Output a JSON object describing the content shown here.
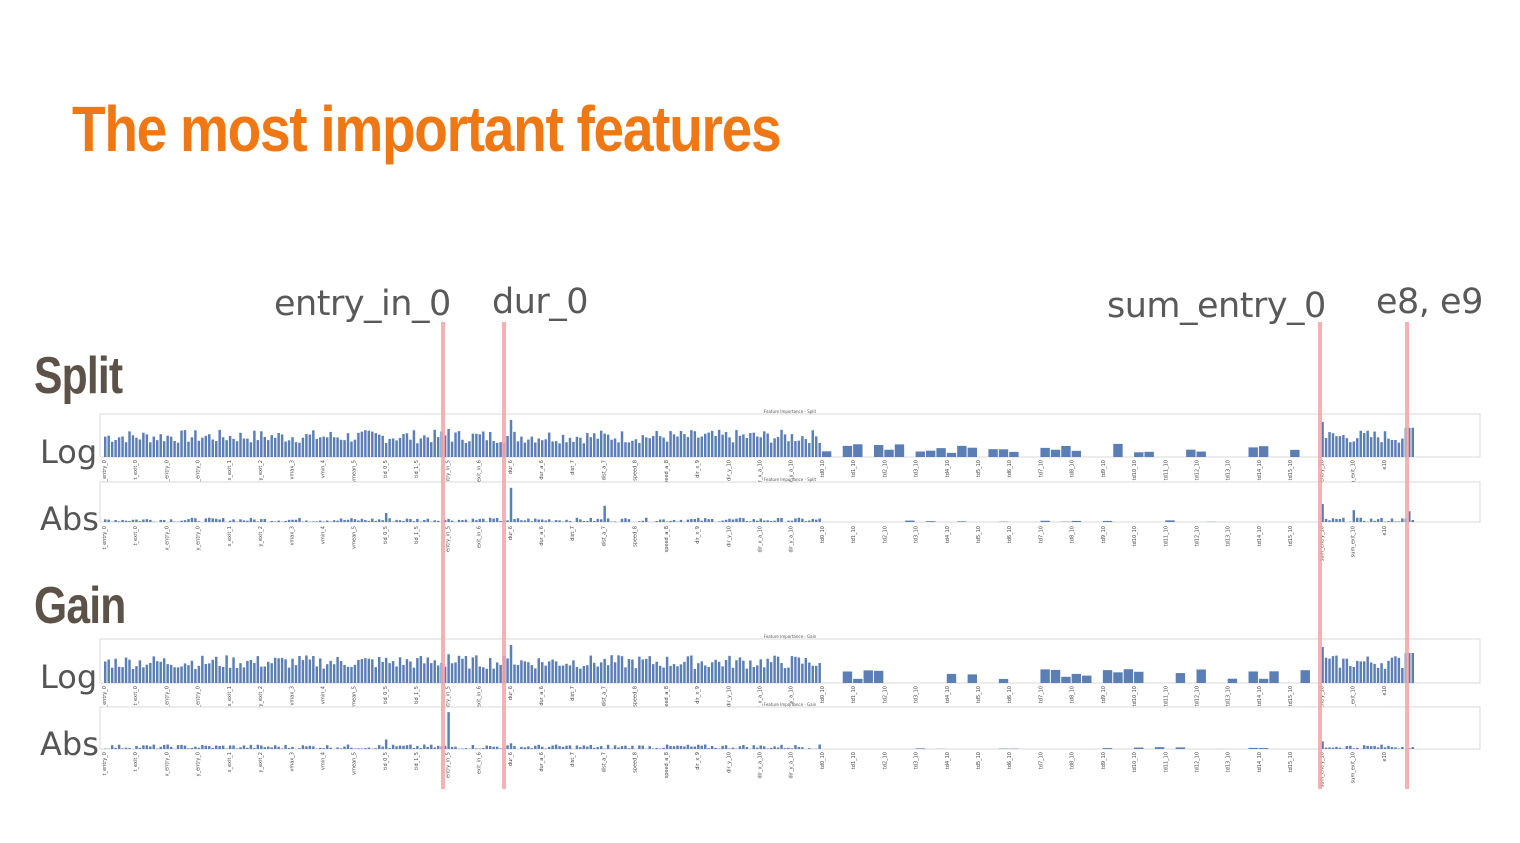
{
  "title": "The most important features",
  "sections": {
    "split": "Split",
    "gain": "Gain"
  },
  "row_labels": {
    "log": "Log",
    "abs": "Abs"
  },
  "callouts": [
    "entry_in_0",
    "dur_0",
    "sum_entry_0",
    "e8, e9"
  ],
  "colors": {
    "title": "#f07814",
    "bar": "#5b7fb5",
    "highlight": "#f4a3a8"
  },
  "chart_data": [
    {
      "type": "bar",
      "title": "Feature Importance - Split",
      "scale": "log",
      "categories": [
        "t_entry_0",
        "t_exit_0",
        "x_entry_0",
        "y_entry_0",
        "x_exit_1",
        "y_exit_2",
        "vmax_3",
        "vmin_4",
        "vmean_5",
        "tid_0_5",
        "tid_1_5",
        "entry_in_5",
        "exit_in_6",
        "dur_6",
        "dur_a_6",
        "dist_7",
        "dist_a_7",
        "speed_8",
        "speed_a_8",
        "dir_x_9",
        "dir_y_10",
        "dir_x_a_10",
        "dir_y_a_10",
        "td0_10",
        "td1_10",
        "td2_10",
        "td3_10",
        "td4_10",
        "td5_10",
        "td6_10",
        "td7_10",
        "td8_10",
        "td9_10",
        "td10_10",
        "td11_10",
        "td12_10",
        "td13_10",
        "td14_10",
        "td15_10",
        "sum_entry_10",
        "sum_exit_10",
        "e10"
      ],
      "highlighted": [
        "entry_in_0",
        "dur_0",
        "sum_entry_0",
        "e8",
        "e9"
      ]
    },
    {
      "type": "bar",
      "title": "Feature Importance - Split",
      "scale": "linear",
      "categories": [
        "t_entry_0",
        "t_exit_0",
        "x_entry_0",
        "y_entry_0",
        "x_exit_1",
        "y_exit_2",
        "vmax_3",
        "vmin_4",
        "vmean_5",
        "tid_0_5",
        "tid_1_5",
        "entry_in_5",
        "exit_in_6",
        "dur_6",
        "dur_a_6",
        "dist_7",
        "dist_a_7",
        "speed_8",
        "speed_a_8",
        "dir_x_9",
        "dir_y_10",
        "dir_x_a_10",
        "dir_y_a_10",
        "td0_10",
        "td1_10",
        "td2_10",
        "td3_10",
        "td4_10",
        "td5_10",
        "td6_10",
        "td7_10",
        "td8_10",
        "td9_10",
        "td10_10",
        "td11_10",
        "td12_10",
        "td13_10",
        "td14_10",
        "td15_10",
        "sum_entry_10",
        "sum_exit_10",
        "e10"
      ],
      "highlighted": [
        "entry_in_0",
        "dur_0",
        "sum_entry_0",
        "e8",
        "e9"
      ]
    },
    {
      "type": "bar",
      "title": "Feature Importance - Gain",
      "scale": "log",
      "categories": [
        "t_entry_0",
        "t_exit_0",
        "x_entry_0",
        "y_entry_0",
        "x_exit_1",
        "y_exit_2",
        "vmax_3",
        "vmin_4",
        "vmean_5",
        "tid_0_5",
        "tid_1_5",
        "entry_in_5",
        "exit_in_6",
        "dur_6",
        "dur_a_6",
        "dist_7",
        "dist_a_7",
        "speed_8",
        "speed_a_8",
        "dir_x_9",
        "dir_y_10",
        "dir_x_a_10",
        "dir_y_a_10",
        "td0_10",
        "td1_10",
        "td2_10",
        "td3_10",
        "td4_10",
        "td5_10",
        "td6_10",
        "td7_10",
        "td8_10",
        "td9_10",
        "td10_10",
        "td11_10",
        "td12_10",
        "td13_10",
        "td14_10",
        "td15_10",
        "sum_entry_10",
        "sum_exit_10",
        "e10"
      ],
      "highlighted": [
        "entry_in_0",
        "dur_0",
        "sum_entry_0",
        "e8",
        "e9"
      ]
    },
    {
      "type": "bar",
      "title": "Feature Importance - Gain",
      "scale": "linear",
      "categories": [
        "t_entry_0",
        "t_exit_0",
        "x_entry_0",
        "y_entry_0",
        "x_exit_1",
        "y_exit_2",
        "vmax_3",
        "vmin_4",
        "vmean_5",
        "tid_0_5",
        "tid_1_5",
        "entry_in_5",
        "exit_in_6",
        "dur_6",
        "dur_a_6",
        "dist_7",
        "dist_a_7",
        "speed_8",
        "speed_a_8",
        "dir_x_9",
        "dir_y_10",
        "dir_x_a_10",
        "dir_y_a_10",
        "td0_10",
        "td1_10",
        "td2_10",
        "td3_10",
        "td4_10",
        "td5_10",
        "td6_10",
        "td7_10",
        "td8_10",
        "td9_10",
        "td10_10",
        "td11_10",
        "td12_10",
        "td13_10",
        "td14_10",
        "td15_10",
        "sum_entry_10",
        "sum_exit_10",
        "e10"
      ],
      "highlighted": [
        "entry_in_0",
        "dur_0",
        "sum_entry_0",
        "e8",
        "e9"
      ]
    }
  ]
}
